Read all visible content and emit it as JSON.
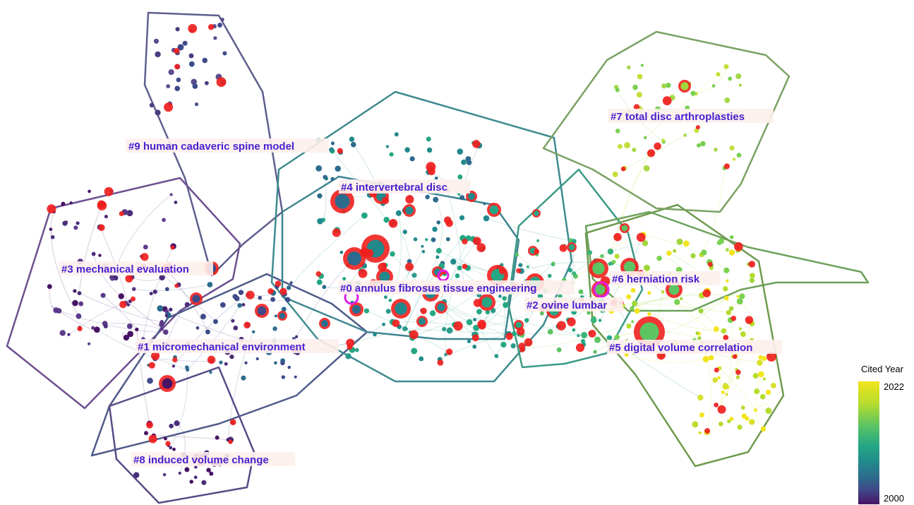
{
  "clusters": [
    {
      "id": 0,
      "label": "#0 annulus fibrosus tissue engineering",
      "color": "#2a8a8e"
    },
    {
      "id": 1,
      "label": "#1 micromechanical environment",
      "color": "#3d4d87"
    },
    {
      "id": 2,
      "label": "#2 ovine lumbar",
      "color": "#21a187"
    },
    {
      "id": 3,
      "label": "#3 mechanical evaluation",
      "color": "#5a3a8a"
    },
    {
      "id": 4,
      "label": "#4 intervertebral disc",
      "color": "#2b7b8e"
    },
    {
      "id": 5,
      "label": "#5 digital volume correlation",
      "color": "#9fd63a"
    },
    {
      "id": 6,
      "label": "#6 herniation risk",
      "color": "#6cc35a"
    },
    {
      "id": 7,
      "label": "#7 total disc arthroplasties",
      "color": "#8fd07a"
    },
    {
      "id": 8,
      "label": "#8 induced volume change",
      "color": "#4b2c7a"
    },
    {
      "id": 9,
      "label": "#9 human cadaveric spine model",
      "color": "#3e5590"
    }
  ],
  "legend": {
    "title": "Cited Year",
    "max": "2022",
    "min": "2000"
  },
  "colors": {
    "label_text": "#4a1fd0",
    "burst_node": "#f0201e",
    "highlight_ring": "#e01ee8"
  }
}
